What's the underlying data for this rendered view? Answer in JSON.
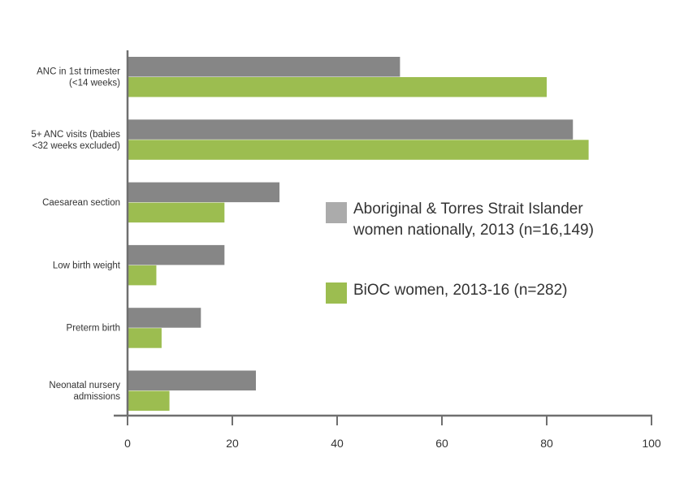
{
  "chart_data": {
    "type": "bar",
    "orientation": "horizontal",
    "categories": [
      [
        "ANC in 1st trimester",
        "(<14 weeks)"
      ],
      [
        "5+ ANC visits (babies",
        "<32 weeks excluded)"
      ],
      [
        "Caesarean section"
      ],
      [
        "Low birth weight"
      ],
      [
        "Preterm birth"
      ],
      [
        "Neonatal nursery",
        "admissions"
      ]
    ],
    "series": [
      {
        "name": [
          "Aboriginal & Torres Strait Islander",
          "women nationally, 2013 (n=16,149)"
        ],
        "color": "#868686",
        "legend_color": "#ababab",
        "values": [
          52,
          85,
          29,
          18.5,
          14,
          24.5
        ]
      },
      {
        "name": [
          "BiOC women, 2013-16 (n=282)"
        ],
        "color": "#9cbd50",
        "legend_color": "#9cbd50",
        "values": [
          80,
          88,
          18.5,
          5.5,
          6.5,
          8
        ]
      }
    ],
    "xlim": [
      0,
      100
    ],
    "xticks": [
      0,
      20,
      40,
      60,
      80,
      100
    ],
    "xticklabels": [
      "0",
      "20",
      "40",
      "60",
      "80",
      "100"
    ],
    "title": "",
    "xlabel": "",
    "ylabel": "",
    "grid": false,
    "legend_position": "center-right",
    "axis_color": "#6f6f6f"
  }
}
